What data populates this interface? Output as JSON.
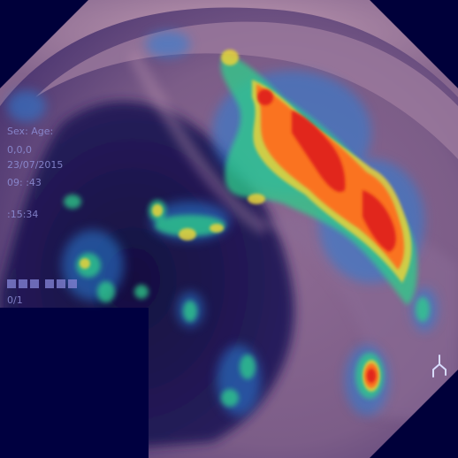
{
  "image": {
    "subject": "endoscopic colon image with heatmap overlay",
    "colors": {
      "background": "#00003a",
      "tissue_light": "#a07a9a",
      "tissue_dark": "#6a4f78",
      "lumen": "#1a1550",
      "heat_low": "#2a7fd8",
      "heat_mid": "#2ecf8a",
      "heat_high_yellow": "#e8d23a",
      "heat_high_orange": "#ff6a1e",
      "heat_peak": "#e0211a"
    }
  },
  "overlay": {
    "sex_age": "Sex:    Age:",
    "code": "0,0,0",
    "date": "23/07/2015",
    "time1": "09:  :43",
    "time2": "  :15:34",
    "frame": "0/1"
  },
  "icons": {
    "marker": "scope-marker-icon"
  }
}
